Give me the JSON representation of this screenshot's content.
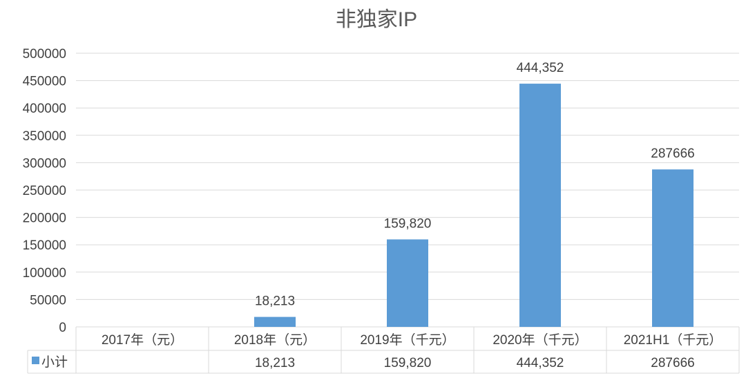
{
  "chart_data": {
    "type": "bar",
    "title": "非独家IP",
    "categories": [
      "2017年（元）",
      "2018年（元）",
      "2019年（千元）",
      "2020年（千元）",
      "2021H1（千元）"
    ],
    "series": [
      {
        "name": "小计",
        "values": [
          null,
          18213,
          159820,
          444352,
          287666
        ],
        "data_labels": [
          "",
          "18,213",
          "159,820",
          "444,352",
          "287666"
        ]
      }
    ],
    "y_ticks": [
      "0",
      "50000",
      "100000",
      "150000",
      "200000",
      "250000",
      "300000",
      "350000",
      "400000",
      "450000",
      "500000"
    ],
    "ylim": [
      0,
      500000
    ],
    "grid": true,
    "legend": "data-table",
    "data_table": {
      "row_label": "小计",
      "cells": [
        "",
        "18,213",
        "159,820",
        "444,352",
        "287666"
      ]
    },
    "colors": {
      "bar": "#5b9bd5",
      "grid": "#d9d9d9",
      "text": "#404040",
      "title": "#595959"
    }
  }
}
